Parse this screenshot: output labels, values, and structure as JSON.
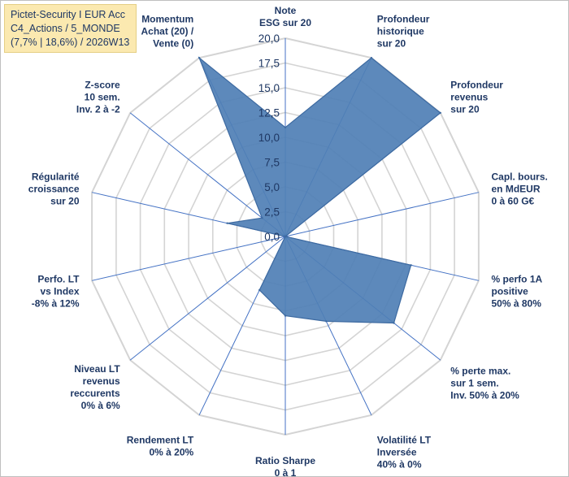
{
  "header": {
    "lines": [
      "Pictet-Security I EUR Acc",
      "C4_Actions / 5_MONDE",
      "(7,7% | 18,6%) / 2026W13"
    ]
  },
  "colors": {
    "fill": "#4f7fb5",
    "stroke": "#3d6aa1",
    "grid": "#d4d4d4",
    "spoke": "#4472c4",
    "header_bg": "#fbe9b0",
    "text": "#1f3864"
  },
  "chart_data": {
    "type": "radar",
    "axis_ticks": [
      "0,0",
      "2,5",
      "5,0",
      "7,5",
      "10,0",
      "12,5",
      "15,0",
      "17,5",
      "20,0"
    ],
    "rmax": 20,
    "grid": true,
    "legend": "none",
    "axes": [
      {
        "label": [
          "Note",
          "ESG sur 20"
        ],
        "value": 11
      },
      {
        "label": [
          "Profondeur",
          "historique",
          "sur 20"
        ],
        "value": 20
      },
      {
        "label": [
          "Profondeur",
          "revenus",
          "sur 20"
        ],
        "value": 20
      },
      {
        "label": [
          "Capl. bours.",
          "en MdEUR",
          "0 à 60 G€"
        ],
        "value": 0
      },
      {
        "label": [
          "% perfo 1A",
          "positive",
          "50% à 80%"
        ],
        "value": 13
      },
      {
        "label": [
          "% perte max.",
          "sur 1 sem.",
          "Inv. 50% à 20%"
        ],
        "value": 14
      },
      {
        "label": [
          "Volatilité LT",
          "Inversée",
          "40% à 0%"
        ],
        "value": 9.5
      },
      {
        "label": [
          "Ratio Sharpe",
          "0 à 1"
        ],
        "value": 8
      },
      {
        "label": [
          "Rendement LT",
          "0% à 20%"
        ],
        "value": 6
      },
      {
        "label": [
          "Niveau LT",
          "revenus",
          "reccurents",
          "0% à 6%"
        ],
        "value": 0
      },
      {
        "label": [
          "Perfo. LT",
          "vs Index",
          "-8% à 12%"
        ],
        "value": 0
      },
      {
        "label": [
          "Régularité",
          "croissance",
          "sur 20"
        ],
        "value": 6
      },
      {
        "label": [
          "Z-score",
          "10 sem.",
          "Inv. 2 à -2"
        ],
        "value": 3
      },
      {
        "label": [
          "Momentum",
          "Achat (20) /",
          "Vente (0)"
        ],
        "value": 20
      }
    ],
    "polygon_order_values": [
      11,
      20,
      20,
      0,
      13,
      14,
      9.5,
      8,
      6,
      0,
      0,
      6,
      3,
      20
    ],
    "polygon_note": ""
  }
}
